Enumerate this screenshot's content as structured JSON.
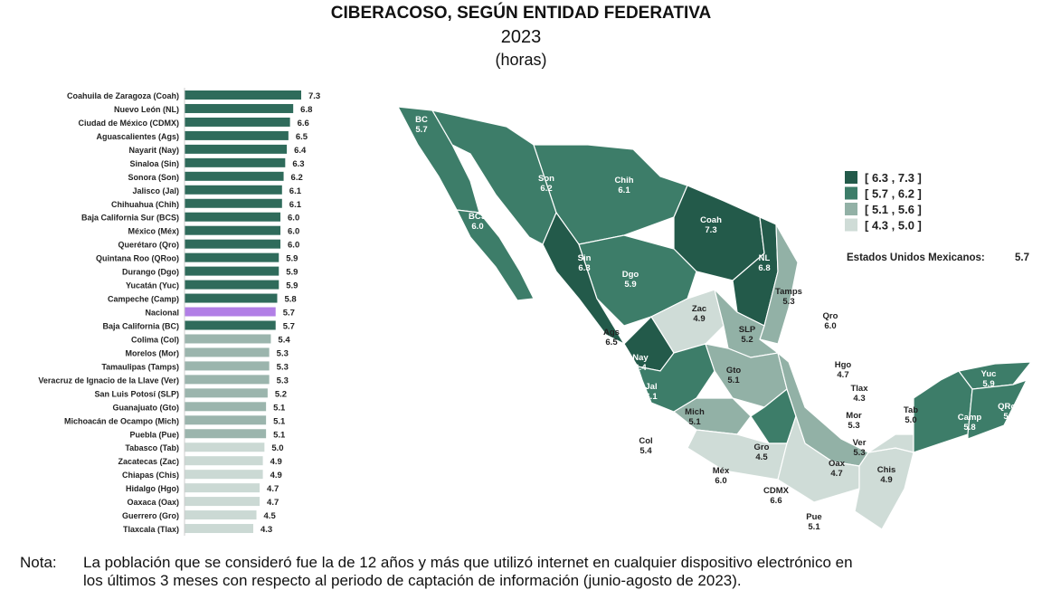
{
  "title": "CIBERACOSO, SEGÚN ENTIDAD FEDERATIVA",
  "year": "2023",
  "unit": "(horas)",
  "chart_data": [
    {
      "type": "bar",
      "orientation": "horizontal",
      "categories": [
        "Coahuila de Zaragoza (Coah)",
        "Nuevo León (NL)",
        "Ciudad de México (CDMX)",
        "Aguascalientes (Ags)",
        "Nayarit (Nay)",
        "Sinaloa (Sin)",
        "Sonora (Son)",
        "Jalisco (Jal)",
        "Chihuahua (Chih)",
        "Baja California Sur (BCS)",
        "México (Méx)",
        "Querétaro (Qro)",
        "Quintana Roo (QRoo)",
        "Durango (Dgo)",
        "Yucatán (Yuc)",
        "Campeche (Camp)",
        "Nacional",
        "Baja California (BC)",
        "Colima (Col)",
        "Morelos (Mor)",
        "Tamaulipas (Tamps)",
        "Veracruz de Ignacio de la Llave (Ver)",
        "San Luis Potosí (SLP)",
        "Guanajuato (Gto)",
        "Michoacán de Ocampo (Mich)",
        "Puebla (Pue)",
        "Tabasco (Tab)",
        "Zacatecas (Zac)",
        "Chiapas (Chis)",
        "Hidalgo (Hgo)",
        "Oaxaca (Oax)",
        "Guerrero (Gro)",
        "Tlaxcala (Tlax)"
      ],
      "values": [
        7.3,
        6.8,
        6.6,
        6.5,
        6.4,
        6.3,
        6.2,
        6.1,
        6.1,
        6.0,
        6.0,
        6.0,
        5.9,
        5.9,
        5.9,
        5.8,
        5.7,
        5.7,
        5.4,
        5.3,
        5.3,
        5.3,
        5.2,
        5.1,
        5.1,
        5.1,
        5.0,
        4.9,
        4.9,
        4.7,
        4.7,
        4.5,
        4.3
      ],
      "data_labels": [
        "7.3",
        "6.8",
        "6.6",
        "6.5",
        "6.4",
        "6.3",
        "6.2",
        "6.1",
        "6.1",
        "6.0",
        "6.0",
        "6.0",
        "5.9",
        "5.9",
        "5.9",
        "5.8",
        "5.7",
        "5.7",
        "5.4",
        "5.3",
        "5.3",
        "5.3",
        "5.2",
        "5.1",
        "5.1",
        "5.1",
        "5.0",
        "4.9",
        "4.9",
        "4.7",
        "4.7",
        "4.5",
        "4.3"
      ],
      "xlim": [
        0,
        7.3
      ],
      "grid": false,
      "colors": {
        "high": "#2f6b5b",
        "mid": "#9bb5ad",
        "low": "#cbd9d4",
        "national": "#b27fe6"
      }
    },
    {
      "type": "choropleth",
      "legend": {
        "placement": "right",
        "classes": [
          {
            "label": "[ 6.3 ,  7.3 ]",
            "color": "#235a4a"
          },
          {
            "label": "[ 5.7 ,  6.2 ]",
            "color": "#3d7d69"
          },
          {
            "label": "[ 5.1 ,  5.6 ]",
            "color": "#92b1a6"
          },
          {
            "label": "[ 4.3 ,  5.0 ]",
            "color": "#cfdcd7"
          }
        ],
        "national_label": "Estados Unidos Mexicanos:",
        "national_value": "5.7"
      },
      "states": [
        {
          "abbr": "BC",
          "value": "5.7"
        },
        {
          "abbr": "BCS",
          "value": "6.0"
        },
        {
          "abbr": "Son",
          "value": "6.2"
        },
        {
          "abbr": "Chih",
          "value": "6.1"
        },
        {
          "abbr": "Coah",
          "value": "7.3"
        },
        {
          "abbr": "NL",
          "value": "6.8"
        },
        {
          "abbr": "Sin",
          "value": "6.3"
        },
        {
          "abbr": "Dgo",
          "value": "5.9"
        },
        {
          "abbr": "Tamps",
          "value": "5.3"
        },
        {
          "abbr": "Zac",
          "value": "4.9"
        },
        {
          "abbr": "SLP",
          "value": "5.2"
        },
        {
          "abbr": "Ags",
          "value": "6.5"
        },
        {
          "abbr": "Nay",
          "value": "6.4"
        },
        {
          "abbr": "Qro",
          "value": "6.0"
        },
        {
          "abbr": "Gto",
          "value": "5.1"
        },
        {
          "abbr": "Hgo",
          "value": "4.7"
        },
        {
          "abbr": "Jal",
          "value": "6.1"
        },
        {
          "abbr": "Tlax",
          "value": "4.3"
        },
        {
          "abbr": "Mich",
          "value": "5.1"
        },
        {
          "abbr": "Mor",
          "value": "5.3"
        },
        {
          "abbr": "Col",
          "value": "5.4"
        },
        {
          "abbr": "Gro",
          "value": "4.5"
        },
        {
          "abbr": "Ver",
          "value": "5.3"
        },
        {
          "abbr": "Tab",
          "value": "5.0"
        },
        {
          "abbr": "Oax",
          "value": "4.7"
        },
        {
          "abbr": "Chis",
          "value": "4.9"
        },
        {
          "abbr": "Méx",
          "value": "6.0"
        },
        {
          "abbr": "CDMX",
          "value": "6.6"
        },
        {
          "abbr": "Pue",
          "value": "5.1"
        },
        {
          "abbr": "Yuc",
          "value": "5.9"
        },
        {
          "abbr": "Camp",
          "value": "5.8"
        },
        {
          "abbr": "QRoo",
          "value": "5.9"
        }
      ]
    }
  ],
  "note": {
    "label": "Nota:",
    "line1": "La población que se consideró fue la de 12 años y más que utilizó internet en cualquier dispositivo electrónico en",
    "line2": "los últimos 3 meses con respecto al periodo de captación de información (junio-agosto de 2023)."
  }
}
